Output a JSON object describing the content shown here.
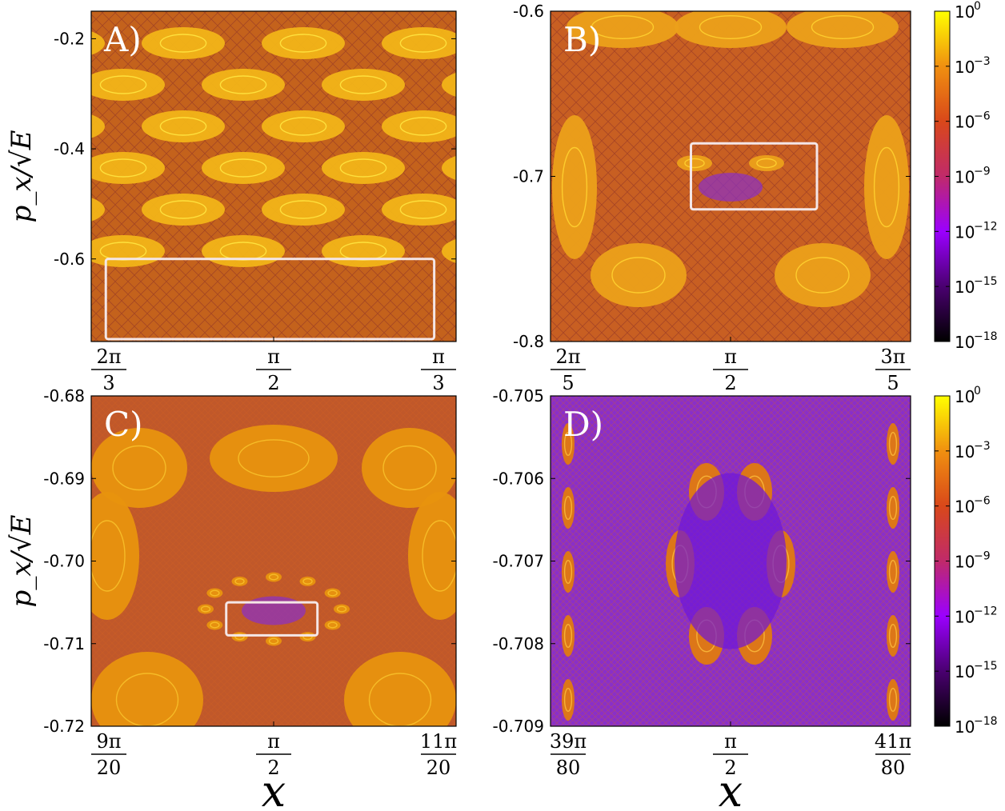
{
  "chart_data": [
    {
      "type": "heatmap",
      "panel_label": "A)",
      "ylabel": "p_x/√E",
      "xlabel": "",
      "ylim": [
        -0.75,
        -0.15
      ],
      "yticks": [
        -0.2,
        -0.4,
        -0.6
      ],
      "yticklabels": [
        "-0.2",
        "-0.4",
        "-0.6"
      ],
      "xticklabels": [
        {
          "num": "2π",
          "den": "3"
        },
        {
          "num": "π",
          "den": "2"
        },
        {
          "num": "π",
          "den": "3"
        }
      ],
      "zoom_box": {
        "x": [
          0.04,
          0.94
        ],
        "y": [
          -0.75,
          -0.6
        ]
      }
    },
    {
      "type": "heatmap",
      "panel_label": "B)",
      "ylabel": "",
      "xlabel": "",
      "ylim": [
        -0.8,
        -0.6
      ],
      "yticks": [
        -0.6,
        -0.7,
        -0.8
      ],
      "yticklabels": [
        "-0.6",
        "-0.7",
        "-0.8"
      ],
      "xticklabels": [
        {
          "num": "2π",
          "den": "5"
        },
        {
          "num": "π",
          "den": "2"
        },
        {
          "num": "3π",
          "den": "5"
        }
      ],
      "zoom_box": {
        "x": [
          0.39,
          0.74
        ],
        "y": [
          -0.72,
          -0.68
        ]
      }
    },
    {
      "type": "heatmap",
      "panel_label": "C)",
      "ylabel": "p_x/√E",
      "xlabel": "x",
      "ylim": [
        -0.72,
        -0.68
      ],
      "yticks": [
        -0.68,
        -0.69,
        -0.7,
        -0.71,
        -0.72
      ],
      "yticklabels": [
        "-0.68",
        "-0.69",
        "-0.70",
        "-0.71",
        "-0.72"
      ],
      "xticklabels": [
        {
          "num": "9π",
          "den": "20"
        },
        {
          "num": "π",
          "den": "2"
        },
        {
          "num": "11π",
          "den": "20"
        }
      ],
      "zoom_box": {
        "x": [
          0.37,
          0.62
        ],
        "y": [
          -0.709,
          -0.705
        ]
      }
    },
    {
      "type": "heatmap",
      "panel_label": "D)",
      "ylabel": "",
      "xlabel": "x",
      "ylim": [
        -0.709,
        -0.705
      ],
      "yticks": [
        -0.705,
        -0.706,
        -0.707,
        -0.708,
        -0.709
      ],
      "yticklabels": [
        "-0.705",
        "-0.706",
        "-0.707",
        "-0.708",
        "-0.709"
      ],
      "xticklabels": [
        {
          "num": "39π",
          "den": "80"
        },
        {
          "num": "π",
          "den": "2"
        },
        {
          "num": "41π",
          "den": "80"
        }
      ],
      "zoom_box": null
    }
  ],
  "colorbar": {
    "colormap": "gnuplot",
    "scale": "log",
    "range": [
      1e-18,
      1
    ],
    "ticks": [
      {
        "base": "10",
        "exp": "0"
      },
      {
        "base": "10",
        "exp": "−3"
      },
      {
        "base": "10",
        "exp": "−6"
      },
      {
        "base": "10",
        "exp": "−9"
      },
      {
        "base": "10",
        "exp": "−12"
      },
      {
        "base": "10",
        "exp": "−15"
      },
      {
        "base": "10",
        "exp": "−18"
      }
    ],
    "stops": [
      "#000000",
      "#4a0070",
      "#9b00ff",
      "#c02a6a",
      "#d9481a",
      "#f09010",
      "#ffff00"
    ]
  },
  "colors": {
    "background_main": "#c7661b",
    "background_fine": "#8e38c0",
    "zoom_box": "#f4e6e6"
  }
}
